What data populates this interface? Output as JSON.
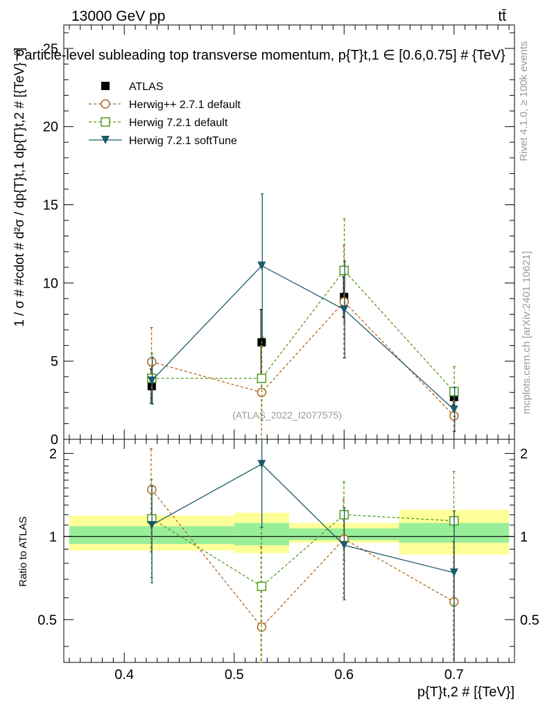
{
  "header": {
    "energy_label": "13000 GeV pp",
    "process_label": "tt̄",
    "title": "Particle-level subleading top transverse momentum, p{T}t,1 ∈ [0.6,0.75] # {TeV}",
    "side_rivet": "Rivet 4.1.0, ≥ 100k events",
    "side_mcplots": "mcplots.cern.ch [arXiv:2401.10621]",
    "analysis_id": "(ATLAS_2022_I2077575)"
  },
  "chart_data": [
    {
      "type": "scatter",
      "panel": "main",
      "ylabel": "1 / σ # #cdot # d²σ / dp{T}t,1 dp{T}t,2 # [{TeV}⁻²]",
      "xlim": [
        0.345,
        0.755
      ],
      "ylim": [
        0,
        26.5
      ],
      "yticks": [
        0,
        5,
        10,
        15,
        20,
        25
      ],
      "legend_position": "top-left",
      "series": [
        {
          "name": "ATLAS",
          "color": "#000000",
          "marker": "filled-square",
          "line": "none",
          "x": [
            0.425,
            0.525,
            0.6,
            0.7
          ],
          "values": [
            3.4,
            6.2,
            9.1,
            2.7
          ],
          "err": [
            1.1,
            2.1,
            1.3,
            0.5
          ]
        },
        {
          "name": "Herwig++ 2.7.1 default",
          "color": "#b5651d",
          "marker": "open-circle",
          "line": "dashed",
          "x": [
            0.425,
            0.525,
            0.6,
            0.7
          ],
          "values": [
            4.95,
            3.0,
            8.8,
            1.5
          ],
          "err": [
            2.2,
            3.0,
            3.6,
            1.0
          ]
        },
        {
          "name": "Herwig 7.2.1 default",
          "color": "#4f9a1a",
          "marker": "open-square",
          "line": "dashed",
          "x": [
            0.425,
            0.525,
            0.6,
            0.7
          ],
          "values": [
            3.9,
            3.9,
            10.8,
            3.05
          ],
          "err": [
            1.6,
            2.7,
            3.3,
            1.6
          ]
        },
        {
          "name": "Herwig 7.2.1 softTune",
          "color": "#1d5a6a",
          "marker": "filled-triangle-down",
          "line": "solid",
          "x": [
            0.425,
            0.525,
            0.6,
            0.7
          ],
          "values": [
            3.75,
            11.1,
            8.3,
            1.9
          ],
          "err": [
            1.5,
            4.6,
            3.1,
            1.4
          ]
        }
      ]
    },
    {
      "type": "scatter",
      "panel": "ratio",
      "ylabel": "Ratio to ATLAS",
      "xlabel": "p{T}t,2 # [{TeV}]",
      "xlim": [
        0.345,
        0.755
      ],
      "ylim": [
        0.35,
        2.25
      ],
      "yticks": [
        0.5,
        1,
        2
      ],
      "xticks": [
        0.4,
        0.5,
        0.6,
        0.7
      ],
      "reference_bands": [
        {
          "x_range": [
            0.35,
            0.5
          ],
          "yellow": [
            0.89,
            1.19
          ],
          "green": [
            0.94,
            1.09
          ]
        },
        {
          "x_range": [
            0.5,
            0.55
          ],
          "yellow": [
            0.87,
            1.22
          ],
          "green": [
            0.93,
            1.12
          ]
        },
        {
          "x_range": [
            0.55,
            0.65
          ],
          "yellow": [
            0.95,
            1.12
          ],
          "green": [
            0.97,
            1.07
          ]
        },
        {
          "x_range": [
            0.65,
            0.75
          ],
          "yellow": [
            0.86,
            1.25
          ],
          "green": [
            0.95,
            1.12
          ]
        }
      ],
      "series": [
        {
          "name": "Herwig++ 2.7.1 default",
          "color": "#b5651d",
          "marker": "open-circle",
          "line": "dashed",
          "x": [
            0.425,
            0.525,
            0.6,
            0.7
          ],
          "values": [
            1.48,
            0.47,
            0.98,
            0.58
          ],
          "err": [
            0.6,
            0.45,
            0.38,
            0.38
          ]
        },
        {
          "name": "Herwig 7.2.1 default",
          "color": "#4f9a1a",
          "marker": "open-square",
          "line": "dashed",
          "x": [
            0.425,
            0.525,
            0.6,
            0.7
          ],
          "values": [
            1.16,
            0.66,
            1.2,
            1.14
          ],
          "err": [
            0.45,
            0.42,
            0.38,
            0.58
          ]
        },
        {
          "name": "Herwig 7.2.1 softTune",
          "color": "#1d5a6a",
          "marker": "filled-triangle-down",
          "line": "solid",
          "x": [
            0.425,
            0.525,
            0.6,
            0.7
          ],
          "values": [
            1.1,
            1.83,
            0.93,
            0.74
          ],
          "err": [
            0.42,
            0.75,
            0.34,
            0.5
          ]
        }
      ]
    }
  ]
}
